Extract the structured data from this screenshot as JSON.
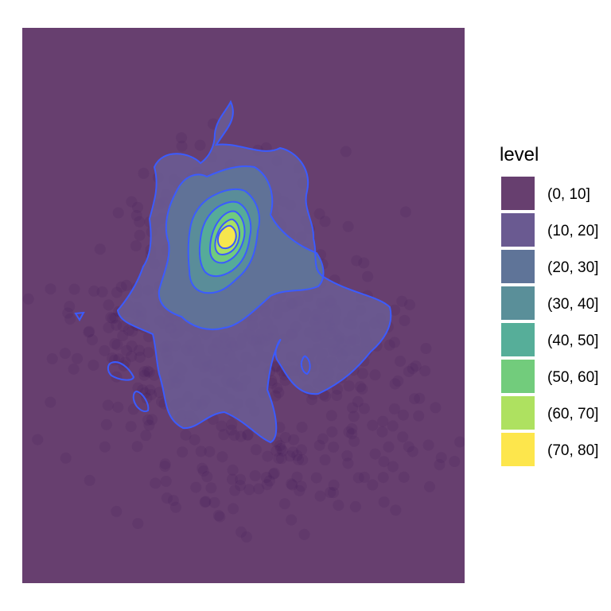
{
  "chart_data": {
    "type": "heatmap",
    "subtype": "2d-density-filled-contour",
    "title": "",
    "xlabel": "",
    "ylabel": "",
    "axes_visible": false,
    "grid": false,
    "background_color": "#673f6f",
    "contour_line_color": "#3b5bff",
    "point_color": "#3b0f4f",
    "legend": {
      "title": "level",
      "placement": "right",
      "entries": [
        {
          "label": "(0, 10]",
          "color": "#673f6f"
        },
        {
          "label": "(10, 20]",
          "color": "#6a5a91"
        },
        {
          "label": "(20, 30]",
          "color": "#5f7498"
        },
        {
          "label": "(30, 40]",
          "color": "#5a8f99"
        },
        {
          "label": "(40, 50]",
          "color": "#56ae99"
        },
        {
          "label": "(50, 60]",
          "color": "#72cc7c"
        },
        {
          "label": "(60, 70]",
          "color": "#aee160"
        },
        {
          "label": "(70, 80]",
          "color": "#fde64c"
        }
      ]
    }
  }
}
